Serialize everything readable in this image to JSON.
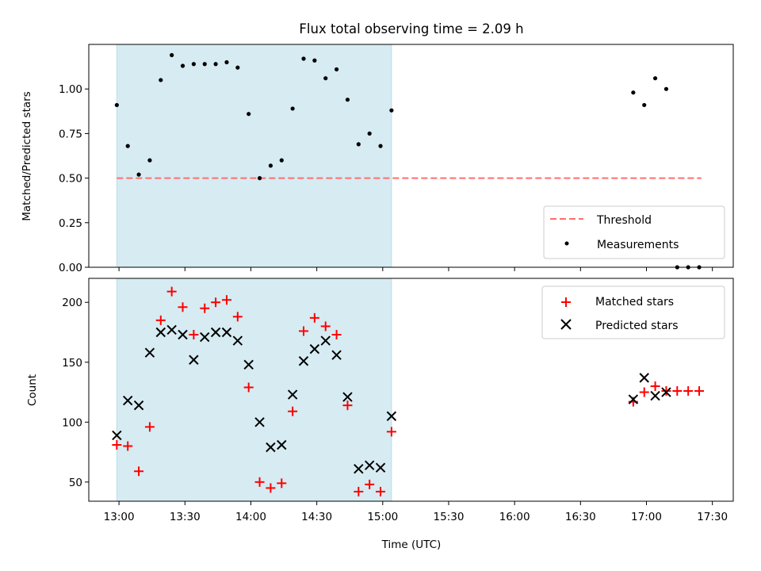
{
  "title": "Flux total observing time = 2.09 h",
  "colors": {
    "shade": "#add8e6",
    "threshold": "#ff6e6e",
    "measurement": "#000000",
    "matched": "#ff0000",
    "predicted": "#000000"
  },
  "x_ticks": [
    "13:00",
    "13:30",
    "14:00",
    "14:30",
    "15:00",
    "15:30",
    "16:00",
    "16:30",
    "17:00",
    "17:30"
  ],
  "chart_data": [
    {
      "type": "scatter",
      "panel": "top",
      "xlabel": "",
      "ylabel": "Matched/Predicted stars",
      "xlim_minutes": [
        -13.75,
        279.5
      ],
      "x_axis": "Time (UTC) from 13:00 (minutes)",
      "ylim": [
        0,
        1.25
      ],
      "y_ticks": [
        "0.00",
        "0.25",
        "0.50",
        "0.75",
        "1.00"
      ],
      "shaded_interval": [
        "12:59",
        "15:04"
      ],
      "threshold": {
        "name": "Threshold",
        "value": 0.5,
        "x_range": [
          "12:59",
          "17:25"
        ],
        "style": "dashed"
      },
      "legend": [
        "Threshold",
        "Measurements"
      ],
      "legend_position": "lower right",
      "series": [
        {
          "name": "Measurements",
          "marker": "dot",
          "x": [
            "12:59",
            "13:04",
            "13:09",
            "13:14",
            "13:19",
            "13:24",
            "13:29",
            "13:34",
            "13:39",
            "13:44",
            "13:49",
            "13:54",
            "13:59",
            "14:04",
            "14:09",
            "14:14",
            "14:19",
            "14:24",
            "14:29",
            "14:34",
            "14:39",
            "14:44",
            "14:49",
            "14:54",
            "14:59",
            "15:04",
            "16:54",
            "16:59",
            "17:04",
            "17:09",
            "17:14",
            "17:19",
            "17:24"
          ],
          "y": [
            0.91,
            0.68,
            0.52,
            0.6,
            1.05,
            1.19,
            1.13,
            1.14,
            1.14,
            1.14,
            1.15,
            1.12,
            0.86,
            0.5,
            0.57,
            0.6,
            0.89,
            1.17,
            1.16,
            1.06,
            1.11,
            0.94,
            0.69,
            0.75,
            0.68,
            0.88,
            0.98,
            0.91,
            1.06,
            1.0,
            0.0,
            0.0,
            0.0
          ]
        }
      ]
    },
    {
      "type": "scatter",
      "panel": "bottom",
      "xlabel": "Time (UTC)",
      "ylabel": "Count",
      "xlim_minutes": [
        -13.75,
        279.5
      ],
      "ylim": [
        34,
        220
      ],
      "y_ticks": [
        "50",
        "100",
        "150",
        "200"
      ],
      "shaded_interval": [
        "12:59",
        "15:04"
      ],
      "legend": [
        "Matched stars",
        "Predicted stars"
      ],
      "legend_position": "upper right",
      "series": [
        {
          "name": "Matched stars",
          "marker": "plus",
          "x": [
            "12:59",
            "13:04",
            "13:09",
            "13:14",
            "13:19",
            "13:24",
            "13:29",
            "13:34",
            "13:39",
            "13:44",
            "13:49",
            "13:54",
            "13:59",
            "14:04",
            "14:09",
            "14:14",
            "14:19",
            "14:24",
            "14:29",
            "14:34",
            "14:39",
            "14:44",
            "14:49",
            "14:54",
            "14:59",
            "15:04",
            "16:54",
            "16:59",
            "17:04",
            "17:09",
            "17:14",
            "17:19",
            "17:24"
          ],
          "y": [
            81,
            80,
            59,
            96,
            185,
            209,
            196,
            173,
            195,
            200,
            202,
            188,
            129,
            50,
            45,
            49,
            109,
            176,
            187,
            180,
            173,
            114,
            42,
            48,
            42,
            92,
            117,
            125,
            130,
            126,
            126,
            126,
            126
          ]
        },
        {
          "name": "Predicted stars",
          "marker": "x",
          "x": [
            "12:59",
            "13:04",
            "13:09",
            "13:14",
            "13:19",
            "13:24",
            "13:29",
            "13:34",
            "13:39",
            "13:44",
            "13:49",
            "13:54",
            "13:59",
            "14:04",
            "14:09",
            "14:14",
            "14:19",
            "14:24",
            "14:29",
            "14:34",
            "14:39",
            "14:44",
            "14:49",
            "14:54",
            "14:59",
            "15:04",
            "16:54",
            "16:59",
            "17:04",
            "17:09"
          ],
          "y": [
            89,
            118,
            114,
            158,
            175,
            177,
            173,
            152,
            171,
            175,
            175,
            168,
            148,
            100,
            79,
            81,
            123,
            151,
            161,
            168,
            156,
            121,
            61,
            64,
            62,
            105,
            119,
            137,
            122,
            125
          ]
        }
      ]
    }
  ]
}
